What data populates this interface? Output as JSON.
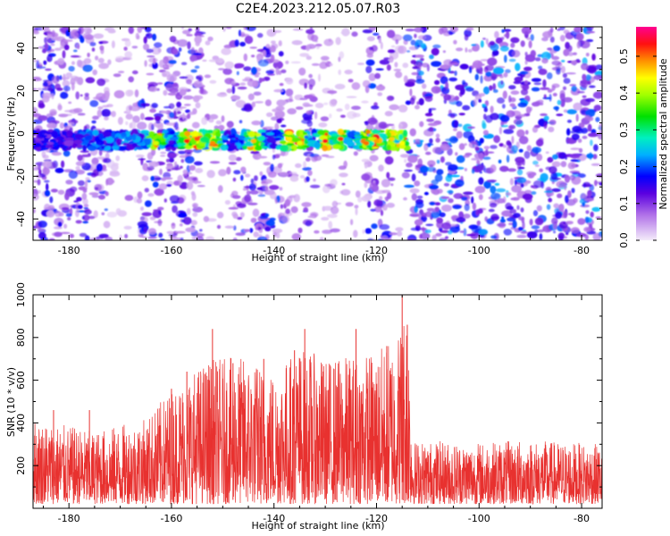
{
  "title": "C2E4.2023.212.05.07.R03",
  "chart_data": [
    {
      "type": "heatmap",
      "xlabel": "Height of straight line (km)",
      "ylabel": "Frequency (Hz)",
      "xlim": [
        -187,
        -76
      ],
      "ylim": [
        -50,
        50
      ],
      "xticks": [
        -180,
        -160,
        -140,
        -120,
        -100,
        -80
      ],
      "yticks": [
        -40,
        -20,
        0,
        20,
        40
      ],
      "colorbar": {
        "label": "Normalized spectral amplitude",
        "range": [
          0,
          0.58
        ],
        "ticks": [
          "0.0",
          "0.1",
          "0.2",
          "0.3",
          "0.4",
          "0.5"
        ]
      },
      "signal_band": {
        "x_range": [
          -187,
          -114
        ],
        "frequency_center": -3,
        "frequency_halfwidth": 4
      },
      "peak_amplitude_locations_km": [
        -163,
        -157,
        -155,
        -152,
        -144,
        -137,
        -135,
        -130,
        -127,
        -122,
        -120,
        -117,
        -115
      ]
    },
    {
      "type": "line",
      "xlabel": "Height of straight line (km)",
      "ylabel": "SNR (10 * v/v)",
      "xlim": [
        -187,
        -76
      ],
      "ylim": [
        0,
        1000
      ],
      "xticks": [
        -180,
        -160,
        -140,
        -120,
        -100,
        -80
      ],
      "yticks": [
        200,
        400,
        600,
        800,
        1000
      ],
      "color": "#e8312f",
      "envelope": {
        "x": [
          -187,
          -175,
          -165,
          -160,
          -153,
          -146,
          -140,
          -135,
          -130,
          -125,
          -120,
          -116,
          -114,
          -113,
          -100,
          -90,
          -76
        ],
        "y_max": [
          420,
          360,
          420,
          560,
          700,
          710,
          650,
          760,
          700,
          720,
          740,
          820,
          1000,
          320,
          310,
          320,
          300
        ]
      },
      "spikes": [
        {
          "x": -183,
          "y": 460
        },
        {
          "x": -176,
          "y": 460
        },
        {
          "x": -160,
          "y": 560
        },
        {
          "x": -157,
          "y": 640
        },
        {
          "x": -152,
          "y": 840
        },
        {
          "x": -148,
          "y": 680
        },
        {
          "x": -142,
          "y": 700
        },
        {
          "x": -136,
          "y": 740
        },
        {
          "x": -134,
          "y": 840
        },
        {
          "x": -124,
          "y": 840
        },
        {
          "x": -118,
          "y": 760
        },
        {
          "x": -115,
          "y": 1000
        },
        {
          "x": -114,
          "y": 860
        }
      ]
    }
  ]
}
